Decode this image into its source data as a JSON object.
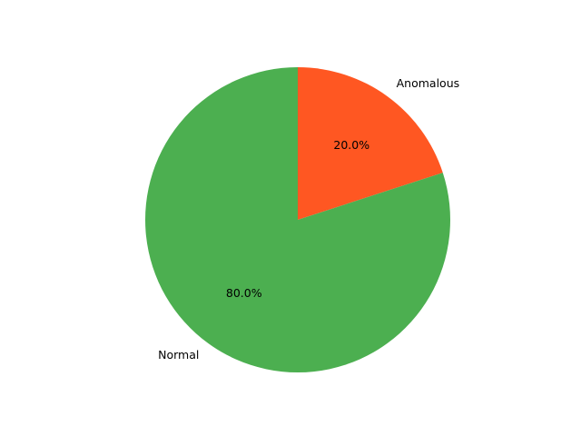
{
  "chart_data": {
    "type": "pie",
    "title": "",
    "slices": [
      {
        "label": "Anomalous",
        "value": 20.0,
        "pct_text": "20.0%",
        "color": "#FF5722"
      },
      {
        "label": "Normal",
        "value": 80.0,
        "pct_text": "80.0%",
        "color": "#4CAF50"
      }
    ],
    "start_angle_deg": 90,
    "direction": "clockwise",
    "legend": "none"
  }
}
